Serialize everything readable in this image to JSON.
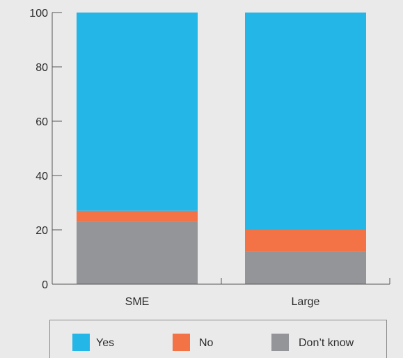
{
  "chart_data": {
    "type": "bar",
    "stacked": true,
    "categories": [
      "SME",
      "Large"
    ],
    "series": [
      {
        "name": "Don’t know",
        "values": [
          23,
          12
        ],
        "color": "#939598"
      },
      {
        "name": "No",
        "values": [
          4,
          8
        ],
        "color": "#f37346"
      },
      {
        "name": "Yes",
        "values": [
          73,
          80
        ],
        "color": "#25b6e8"
      }
    ],
    "yticks": [
      0,
      20,
      40,
      60,
      80,
      100
    ],
    "ylim": [
      0,
      100
    ],
    "grid": false,
    "legend_position": "bottom",
    "legend_order": [
      "Yes",
      "No",
      "Don’t know"
    ]
  }
}
